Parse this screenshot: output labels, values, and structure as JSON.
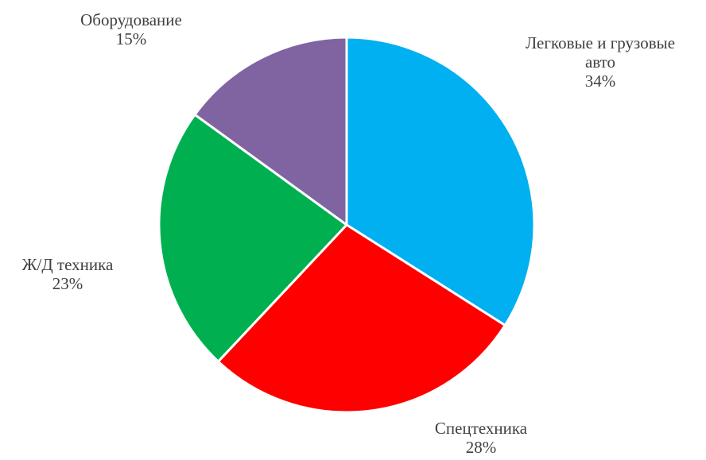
{
  "chart_data": {
    "type": "pie",
    "title": "",
    "start_angle_deg": 0,
    "direction": "clockwise",
    "slices": [
      {
        "label": "Легковые и грузовые авто",
        "label_lines": [
          "Легковые и грузовые",
          "авто"
        ],
        "value": 34,
        "value_label": "34%",
        "color": "#00B0F0"
      },
      {
        "label": "Спецтехника",
        "label_lines": [
          "Спецтехника"
        ],
        "value": 28,
        "value_label": "28%",
        "color": "#FF0000"
      },
      {
        "label": "Ж/Д техника",
        "label_lines": [
          "Ж/Д техника"
        ],
        "value": 23,
        "value_label": "23%",
        "color": "#00B050"
      },
      {
        "label": "Оборудование",
        "label_lines": [
          "Оборудование"
        ],
        "value": 15,
        "value_label": "15%",
        "color": "#8064A2"
      }
    ],
    "slice_border_color": "#FFFFFF",
    "legend": "none"
  }
}
